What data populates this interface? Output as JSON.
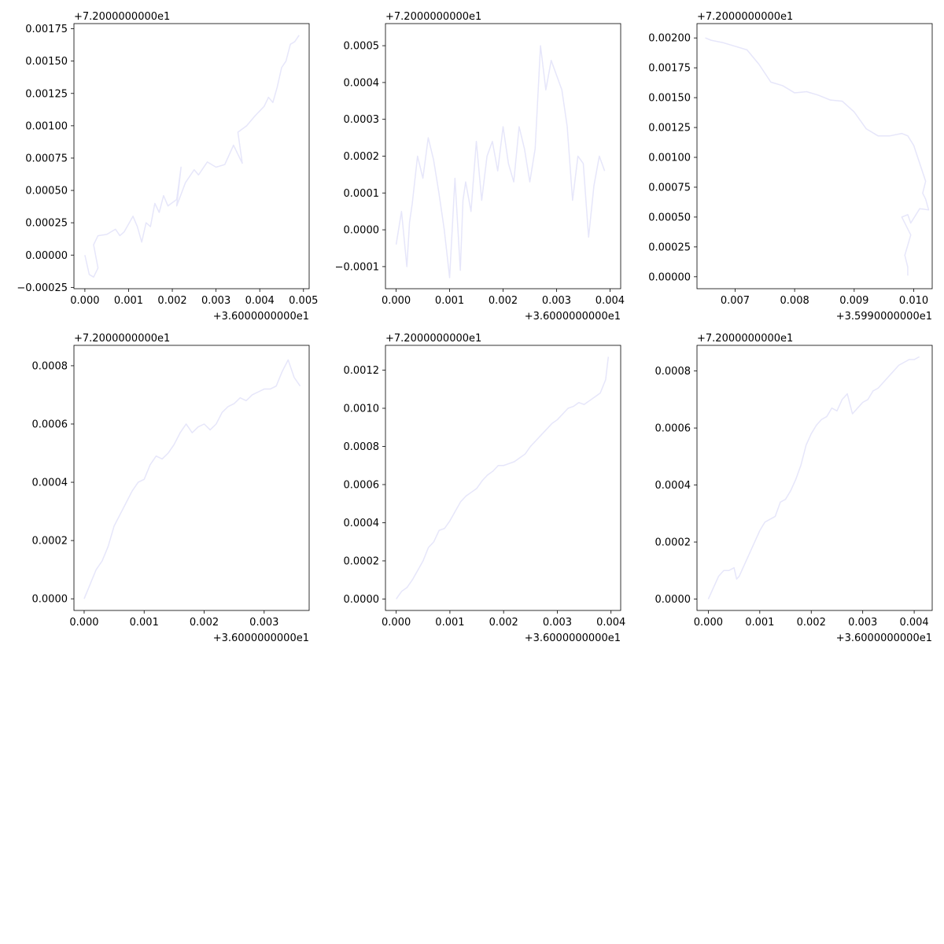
{
  "style": {
    "line_color": "#e6e6fa",
    "axes_color": "#000000",
    "background": "#ffffff"
  },
  "chart_data": [
    {
      "type": "line",
      "x_offset_label": "+3.6000000000e1",
      "y_offset_label": "+7.2000000000e1",
      "xlim": [
        -0.00025,
        0.00513
      ],
      "ylim": [
        -0.00026,
        0.00179
      ],
      "xticks": [
        0.0,
        0.001,
        0.002,
        0.003,
        0.004,
        0.005
      ],
      "xtick_labels": [
        "0.000",
        "0.001",
        "0.002",
        "0.003",
        "0.004",
        "0.005"
      ],
      "yticks": [
        -0.00025,
        0.0,
        0.00025,
        0.0005,
        0.00075,
        0.001,
        0.00125,
        0.0015,
        0.00175
      ],
      "ytick_labels": [
        "−0.00025",
        "0.00000",
        "0.00025",
        "0.00050",
        "0.00075",
        "0.00100",
        "0.00125",
        "0.00150",
        "0.00175"
      ],
      "series": [
        {
          "x": [
            0.0,
            0.0001,
            0.0002,
            0.0003,
            0.0002,
            0.0003,
            0.0005,
            0.0007,
            0.0008,
            0.0009,
            0.0011,
            0.0012,
            0.0013,
            0.0014,
            0.0015,
            0.0016,
            0.0017,
            0.0018,
            0.0019,
            0.0021,
            0.0022,
            0.0021,
            0.0023,
            0.0025,
            0.0026,
            0.0028,
            0.003,
            0.0032,
            0.0034,
            0.0036,
            0.0035,
            0.0037,
            0.0039,
            0.0041,
            0.0042,
            0.0043,
            0.0044,
            0.0045,
            0.0046,
            0.0047,
            0.0048,
            0.0049
          ],
          "y": [
            0.0,
            -0.00015,
            -0.00017,
            -0.0001,
            8e-05,
            0.00015,
            0.00016,
            0.0002,
            0.00015,
            0.00018,
            0.0003,
            0.00022,
            0.0001,
            0.00025,
            0.00022,
            0.0004,
            0.00033,
            0.00046,
            0.00038,
            0.00043,
            0.00068,
            0.00038,
            0.00056,
            0.00066,
            0.00062,
            0.00072,
            0.00068,
            0.0007,
            0.00085,
            0.00071,
            0.00095,
            0.001,
            0.00108,
            0.00115,
            0.00122,
            0.00118,
            0.0013,
            0.00145,
            0.0015,
            0.00163,
            0.00165,
            0.0017
          ]
        }
      ]
    },
    {
      "type": "line",
      "x_offset_label": "+3.6000000000e1",
      "y_offset_label": "+7.2000000000e1",
      "xlim": [
        -0.0002,
        0.0042
      ],
      "ylim": [
        -0.00016,
        0.00056
      ],
      "xticks": [
        0.0,
        0.001,
        0.002,
        0.003,
        0.004
      ],
      "xtick_labels": [
        "0.000",
        "0.001",
        "0.002",
        "0.003",
        "0.004"
      ],
      "yticks": [
        -0.0001,
        0.0,
        0.0001,
        0.0002,
        0.0003,
        0.0004,
        0.0005
      ],
      "ytick_labels": [
        "−0.0001",
        "0.0000",
        "0.0001",
        "0.0002",
        "0.0003",
        "0.0004",
        "0.0005"
      ],
      "series": [
        {
          "x": [
            0.0,
            0.0001,
            0.0002,
            0.00025,
            0.0003,
            0.0004,
            0.0005,
            0.0006,
            0.0007,
            0.0008,
            0.0009,
            0.001,
            0.0011,
            0.0012,
            0.00125,
            0.0013,
            0.0014,
            0.0015,
            0.0016,
            0.0017,
            0.0018,
            0.0019,
            0.002,
            0.0021,
            0.0022,
            0.0023,
            0.0024,
            0.0025,
            0.0026,
            0.0027,
            0.0028,
            0.0029,
            0.003,
            0.0031,
            0.0032,
            0.0033,
            0.0034,
            0.0035,
            0.0036,
            0.0037,
            0.0038,
            0.0039
          ],
          "y": [
            -4e-05,
            5e-05,
            -0.0001,
            2e-05,
            7e-05,
            0.0002,
            0.00014,
            0.00025,
            0.00019,
            0.0001,
            0.0,
            -0.00013,
            0.00014,
            -0.00011,
            8e-05,
            0.00013,
            5e-05,
            0.00024,
            8e-05,
            0.0002,
            0.00024,
            0.00016,
            0.00028,
            0.00018,
            0.00013,
            0.00028,
            0.00022,
            0.00013,
            0.00022,
            0.0005,
            0.00038,
            0.00046,
            0.00042,
            0.00038,
            0.00028,
            8e-05,
            0.0002,
            0.00018,
            -2e-05,
            0.00012,
            0.0002,
            0.00016
          ]
        }
      ]
    },
    {
      "type": "line",
      "x_offset_label": "+3.5990000000e1",
      "y_offset_label": "+7.2000000000e1",
      "xlim": [
        0.00636,
        0.01031
      ],
      "ylim": [
        -0.0001,
        0.00212
      ],
      "xticks": [
        0.007,
        0.008,
        0.009,
        0.01
      ],
      "xtick_labels": [
        "0.007",
        "0.008",
        "0.009",
        "0.010"
      ],
      "yticks": [
        0.0,
        0.00025,
        0.0005,
        0.00075,
        0.001,
        0.00125,
        0.0015,
        0.00175,
        0.002
      ],
      "ytick_labels": [
        "0.00000",
        "0.00025",
        "0.00050",
        "0.00075",
        "0.00100",
        "0.00125",
        "0.00150",
        "0.00175",
        "0.00200"
      ],
      "series": [
        {
          "x": [
            0.0065,
            0.0066,
            0.0068,
            0.007,
            0.0072,
            0.0074,
            0.0076,
            0.0078,
            0.008,
            0.0082,
            0.0084,
            0.0086,
            0.0088,
            0.009,
            0.0092,
            0.0094,
            0.0096,
            0.0098,
            0.0099,
            0.01,
            0.0101,
            0.0102,
            0.01015,
            0.0102,
            0.01025,
            0.0101,
            0.00995,
            0.0099,
            0.0098,
            0.00995,
            0.00985,
            0.0099,
            0.0099
          ],
          "y": [
            0.002,
            0.00198,
            0.00196,
            0.00193,
            0.0019,
            0.00178,
            0.00163,
            0.0016,
            0.00154,
            0.00155,
            0.00152,
            0.00148,
            0.00147,
            0.00138,
            0.00124,
            0.00118,
            0.00118,
            0.0012,
            0.00118,
            0.0011,
            0.00095,
            0.0008,
            0.0007,
            0.00065,
            0.00056,
            0.00057,
            0.00045,
            0.00052,
            0.0005,
            0.00035,
            0.00018,
            8e-05,
            1e-05
          ]
        }
      ]
    },
    {
      "type": "line",
      "x_offset_label": "+3.6000000000e1",
      "y_offset_label": "+7.2000000000e1",
      "xlim": [
        -0.00017,
        0.00375
      ],
      "ylim": [
        -4e-05,
        0.00087
      ],
      "xticks": [
        0.0,
        0.001,
        0.002,
        0.003
      ],
      "xtick_labels": [
        "0.000",
        "0.001",
        "0.002",
        "0.003"
      ],
      "yticks": [
        0.0,
        0.0002,
        0.0004,
        0.0006,
        0.0008
      ],
      "ytick_labels": [
        "0.0000",
        "0.0002",
        "0.0004",
        "0.0006",
        "0.0008"
      ],
      "series": [
        {
          "x": [
            0.0,
            0.0001,
            0.0002,
            0.0003,
            0.0004,
            0.0005,
            0.0006,
            0.0007,
            0.0008,
            0.0009,
            0.001,
            0.0011,
            0.0012,
            0.0013,
            0.0014,
            0.0015,
            0.0016,
            0.0017,
            0.0018,
            0.0019,
            0.002,
            0.0021,
            0.0022,
            0.0023,
            0.0024,
            0.0025,
            0.0026,
            0.0027,
            0.0028,
            0.0029,
            0.003,
            0.0031,
            0.0032,
            0.0033,
            0.0034,
            0.0035,
            0.0036
          ],
          "y": [
            0.0,
            5e-05,
            0.0001,
            0.00013,
            0.00018,
            0.00025,
            0.00029,
            0.00033,
            0.00037,
            0.0004,
            0.00041,
            0.00046,
            0.00049,
            0.00048,
            0.0005,
            0.00053,
            0.00057,
            0.0006,
            0.00057,
            0.00059,
            0.0006,
            0.00058,
            0.0006,
            0.00064,
            0.00066,
            0.00067,
            0.00069,
            0.00068,
            0.0007,
            0.00071,
            0.00072,
            0.00072,
            0.00073,
            0.00078,
            0.00082,
            0.00076,
            0.00073
          ]
        }
      ]
    },
    {
      "type": "line",
      "x_offset_label": "+3.6000000000e1",
      "y_offset_label": "+7.2000000000e1",
      "xlim": [
        -0.0002,
        0.00418
      ],
      "ylim": [
        -6e-05,
        0.00133
      ],
      "xticks": [
        0.0,
        0.001,
        0.002,
        0.003,
        0.004
      ],
      "xtick_labels": [
        "0.000",
        "0.001",
        "0.002",
        "0.003",
        "0.004"
      ],
      "yticks": [
        0.0,
        0.0002,
        0.0004,
        0.0006,
        0.0008,
        0.001,
        0.0012
      ],
      "ytick_labels": [
        "0.0000",
        "0.0002",
        "0.0004",
        "0.0006",
        "0.0008",
        "0.0010",
        "0.0012"
      ],
      "series": [
        {
          "x": [
            0.0,
            0.0001,
            0.0002,
            0.0003,
            0.0004,
            0.0005,
            0.0006,
            0.0007,
            0.0008,
            0.0009,
            0.001,
            0.0011,
            0.0012,
            0.0013,
            0.0014,
            0.0015,
            0.0016,
            0.0017,
            0.0018,
            0.0019,
            0.002,
            0.0021,
            0.0022,
            0.0023,
            0.0024,
            0.0025,
            0.0026,
            0.0027,
            0.0028,
            0.0029,
            0.003,
            0.0031,
            0.0032,
            0.0033,
            0.0034,
            0.0035,
            0.0036,
            0.0037,
            0.0038,
            0.0039,
            0.00395
          ],
          "y": [
            0.0,
            4e-05,
            6e-05,
            0.0001,
            0.00015,
            0.0002,
            0.00027,
            0.0003,
            0.00036,
            0.00037,
            0.00041,
            0.00046,
            0.00051,
            0.00054,
            0.00056,
            0.00058,
            0.00062,
            0.00065,
            0.00067,
            0.0007,
            0.0007,
            0.00071,
            0.00072,
            0.00074,
            0.00076,
            0.0008,
            0.00083,
            0.00086,
            0.00089,
            0.00092,
            0.00094,
            0.00097,
            0.001,
            0.00101,
            0.00103,
            0.00102,
            0.00104,
            0.00106,
            0.00108,
            0.00115,
            0.00127
          ]
        }
      ]
    },
    {
      "type": "line",
      "x_offset_label": "+3.6000000000e1",
      "y_offset_label": "+7.2000000000e1",
      "xlim": [
        -0.00022,
        0.00435
      ],
      "ylim": [
        -4e-05,
        0.00089
      ],
      "xticks": [
        0.0,
        0.001,
        0.002,
        0.003,
        0.004
      ],
      "xtick_labels": [
        "0.000",
        "0.001",
        "0.002",
        "0.003",
        "0.004"
      ],
      "yticks": [
        0.0,
        0.0002,
        0.0004,
        0.0006,
        0.0008
      ],
      "ytick_labels": [
        "0.0000",
        "0.0002",
        "0.0004",
        "0.0006",
        "0.0008"
      ],
      "series": [
        {
          "x": [
            0.0,
            0.0001,
            0.0002,
            0.0003,
            0.0004,
            0.0005,
            0.00055,
            0.0006,
            0.0007,
            0.0008,
            0.0009,
            0.001,
            0.0011,
            0.0012,
            0.0013,
            0.0014,
            0.0015,
            0.0016,
            0.0017,
            0.0018,
            0.0019,
            0.002,
            0.0021,
            0.0022,
            0.0023,
            0.0024,
            0.0025,
            0.0026,
            0.0027,
            0.0028,
            0.0029,
            0.003,
            0.0031,
            0.0032,
            0.0033,
            0.0034,
            0.0035,
            0.0036,
            0.0037,
            0.0038,
            0.0039,
            0.004,
            0.0041
          ],
          "y": [
            0.0,
            4e-05,
            8e-05,
            0.0001,
            0.0001,
            0.00011,
            7e-05,
            8e-05,
            0.00012,
            0.00016,
            0.0002,
            0.00024,
            0.00027,
            0.00028,
            0.00029,
            0.00034,
            0.00035,
            0.00038,
            0.00042,
            0.00047,
            0.00054,
            0.00058,
            0.00061,
            0.00063,
            0.00064,
            0.00067,
            0.00066,
            0.0007,
            0.00072,
            0.00065,
            0.00067,
            0.00069,
            0.0007,
            0.00073,
            0.00074,
            0.00076,
            0.00078,
            0.0008,
            0.00082,
            0.00083,
            0.00084,
            0.00084,
            0.00085
          ]
        }
      ]
    }
  ]
}
